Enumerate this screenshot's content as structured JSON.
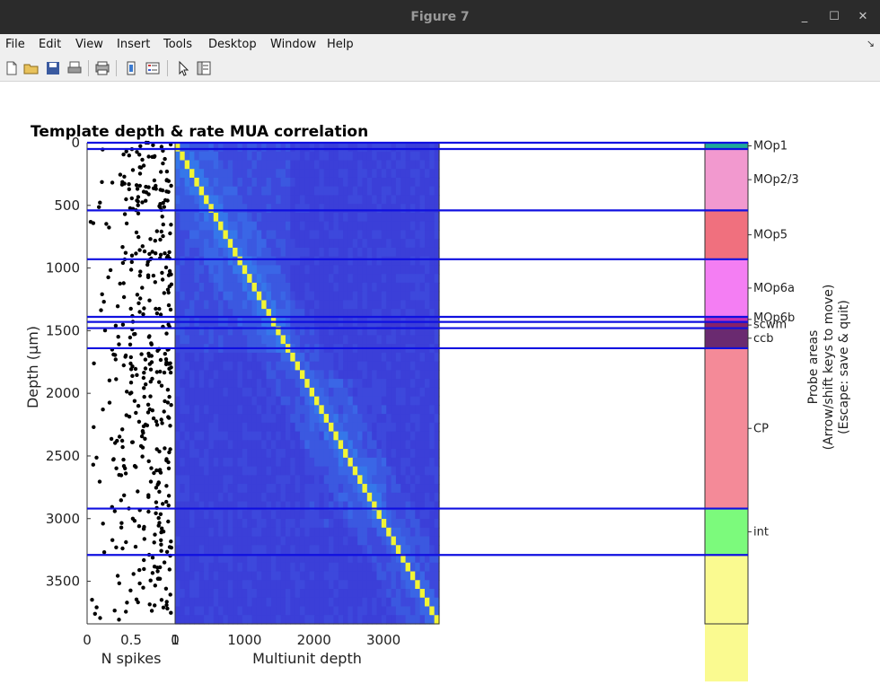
{
  "window": {
    "title": "Figure 7"
  },
  "menu": [
    "File",
    "Edit",
    "View",
    "Insert",
    "Tools",
    "Desktop",
    "Window",
    "Help"
  ],
  "toolbar_icons": [
    "new-figure-icon",
    "open-file-icon",
    "save-icon",
    "print-icon",
    "print-preview-icon",
    "link-plot-icon",
    "insert-legend-icon",
    "edit-plot-arrow-icon",
    "property-inspector-icon"
  ],
  "figure": {
    "title": "Template depth & rate MUA correlation",
    "ylabel": "Depth (μm)",
    "yticks": [
      "0",
      "500",
      "1000",
      "1500",
      "2000",
      "2500",
      "3000",
      "3500"
    ],
    "nspikes": {
      "xlabel": "N spikes",
      "xticks": [
        "0",
        "0.5",
        "1"
      ]
    },
    "mua": {
      "xlabel": "Multiunit depth",
      "xticks": [
        "0",
        "1000",
        "2000",
        "3000"
      ]
    },
    "probe": {
      "ylabel_lines": [
        "Probe areas",
        "(Arrow/shift keys to move)",
        "(Escape: save & quit)"
      ],
      "areas": [
        {
          "name": "MOp1",
          "top": 0,
          "bottom": 50,
          "color": "#1fa89a"
        },
        {
          "name": "MOp2/3",
          "top": 50,
          "bottom": 540,
          "color": "#f299cf"
        },
        {
          "name": "MOp5",
          "top": 540,
          "bottom": 930,
          "color": "#f0707e"
        },
        {
          "name": "MOp6a",
          "top": 930,
          "bottom": 1390,
          "color": "#f47ef3"
        },
        {
          "name": "MOp6b",
          "top": 1390,
          "bottom": 1430,
          "color": "#c62fb0"
        },
        {
          "name": "scwm",
          "top": 1430,
          "bottom": 1480,
          "color": "#882268"
        },
        {
          "name": "ccb",
          "top": 1480,
          "bottom": 1640,
          "color": "#6a2a70"
        },
        {
          "name": "CP",
          "top": 1640,
          "bottom": 2920,
          "color": "#f48a98"
        },
        {
          "name": "int",
          "top": 2920,
          "bottom": 3290,
          "color": "#7cfa7c"
        },
        {
          "name": "",
          "top": 3290,
          "bottom": 4300,
          "color": "#fafa90"
        }
      ]
    },
    "boundaries": [
      0,
      50,
      540,
      930,
      1390,
      1430,
      1480,
      1640,
      2920,
      3290
    ]
  }
}
